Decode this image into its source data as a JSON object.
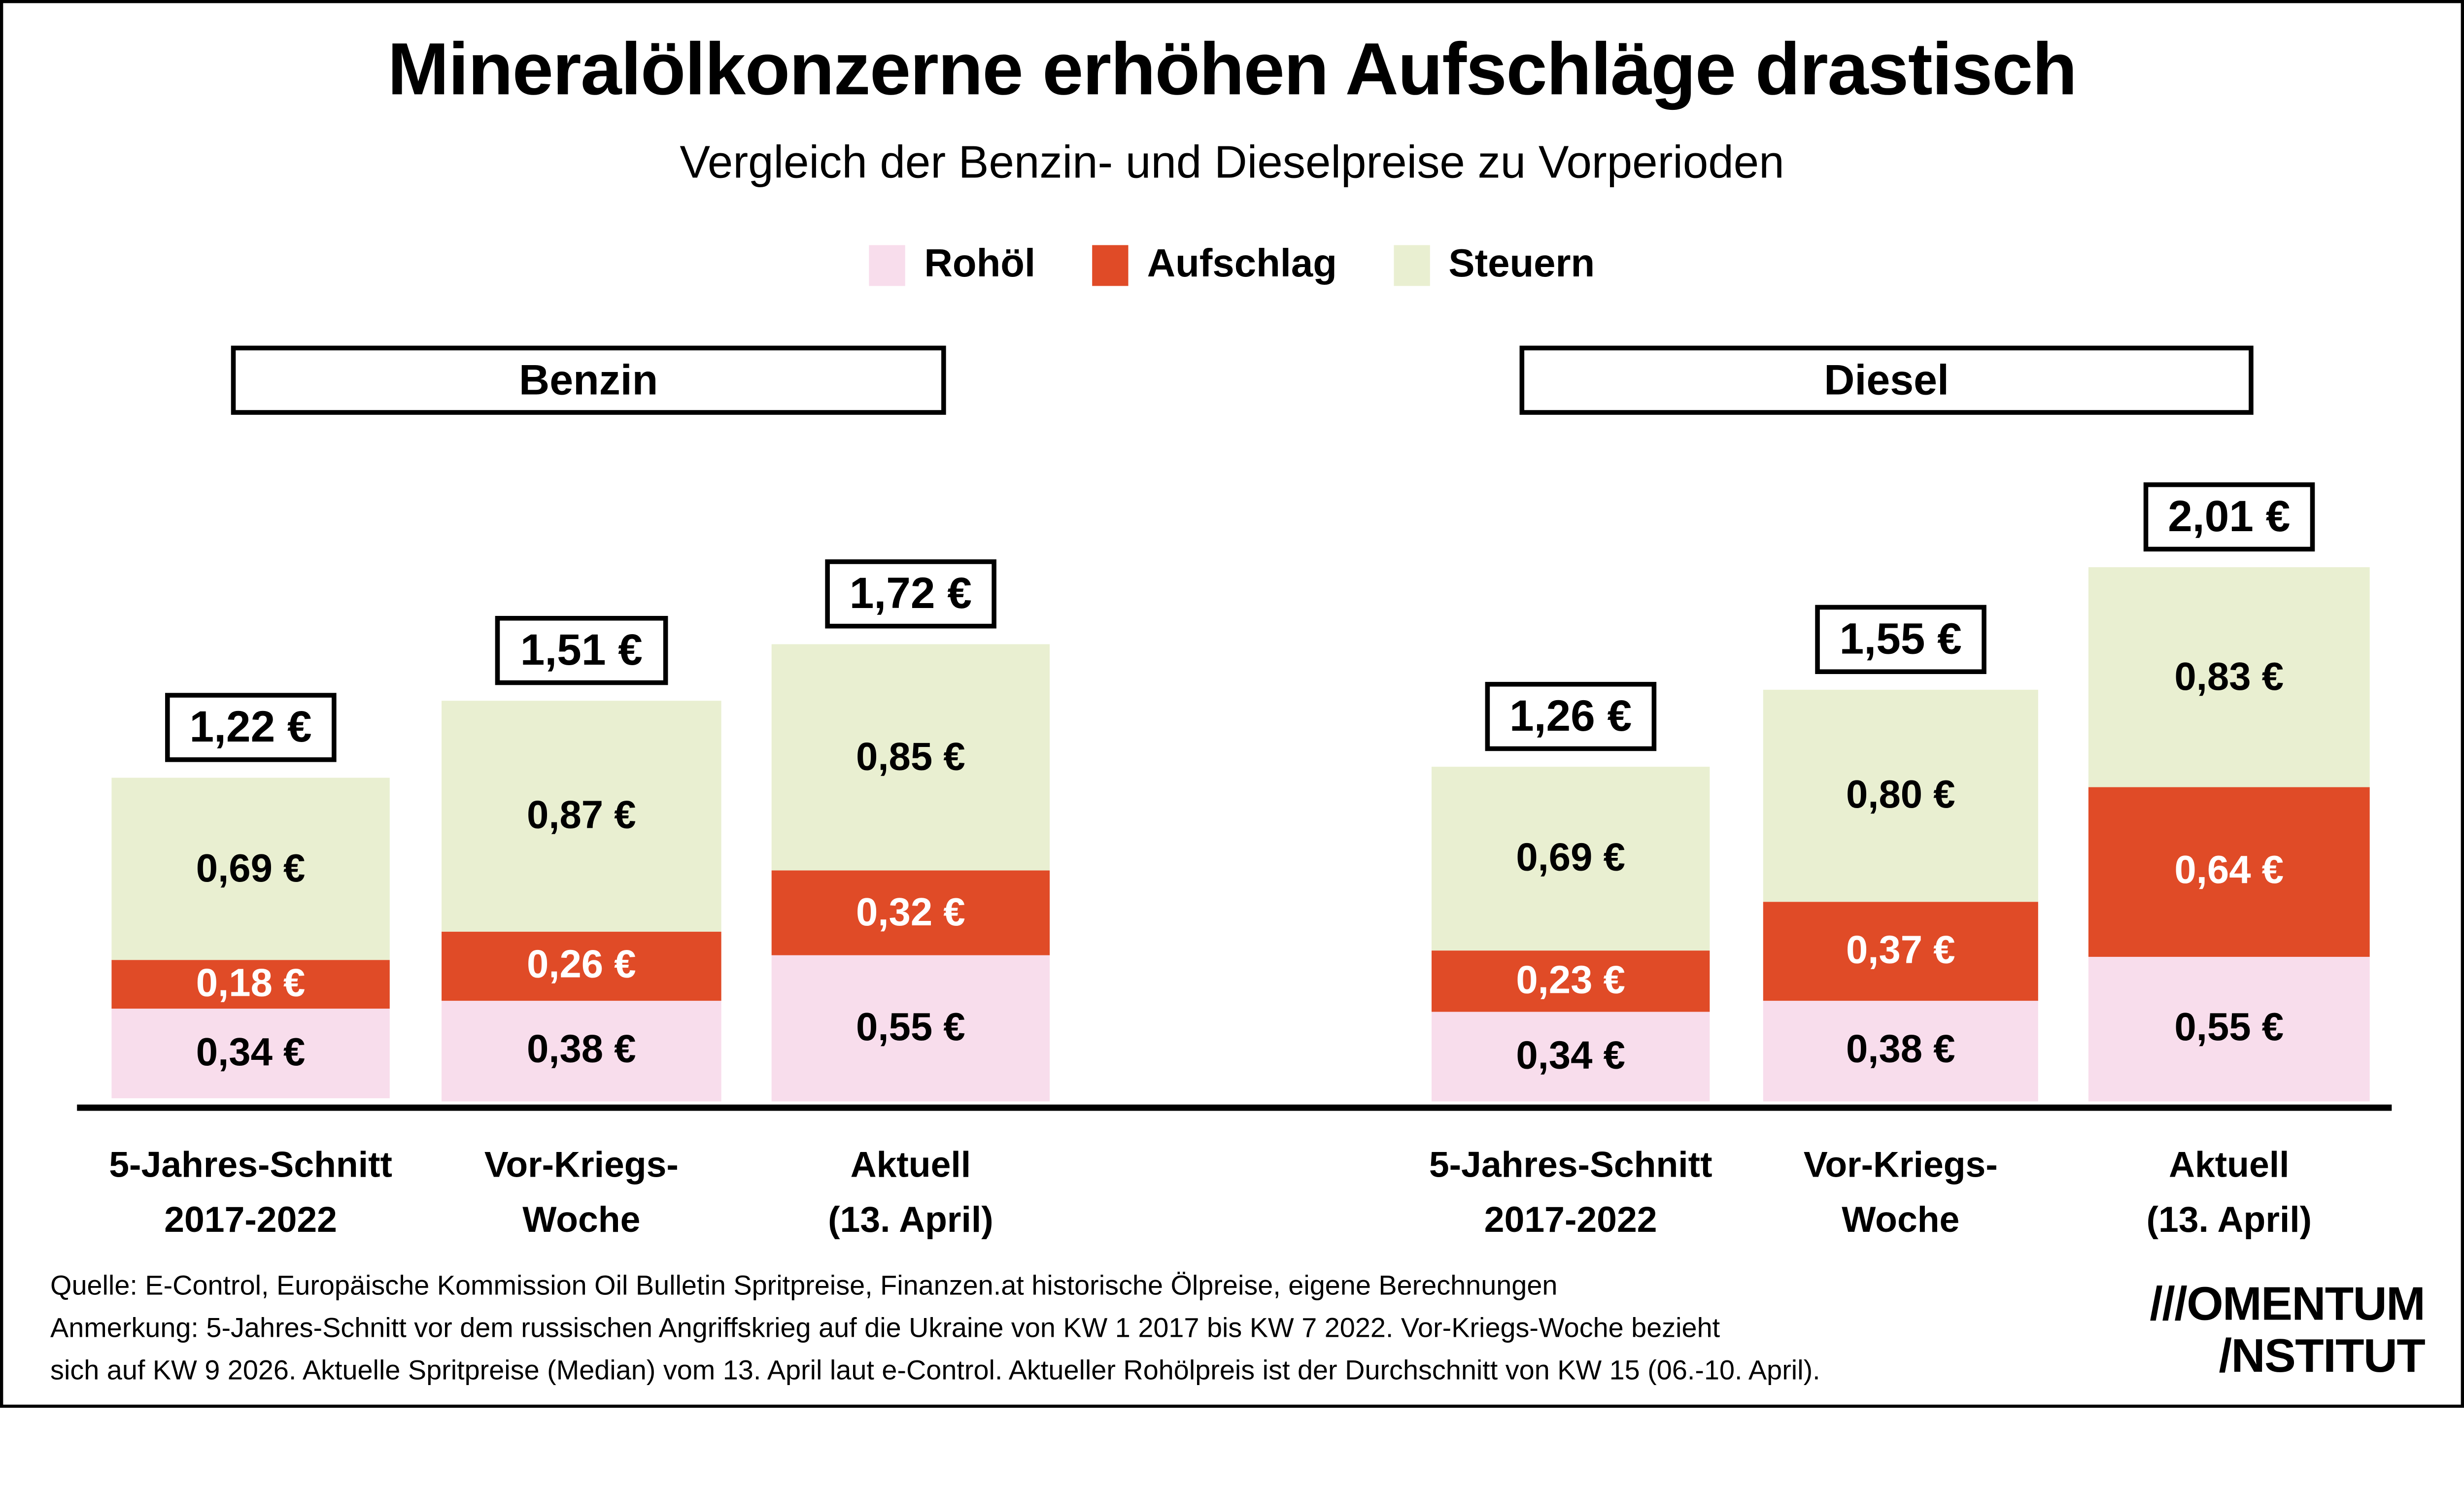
{
  "title": "Mineralölkonzerne erhöhen Aufschläge drastisch",
  "subtitle": "Vergleich der Benzin- und Dieselpreise zu Vorperioden",
  "colors": {
    "rohoel": "#f8ddec",
    "aufschlag": "#e04b27",
    "steuern": "#e9efd1",
    "axis": "#000000",
    "background": "#ffffff"
  },
  "legend": {
    "items": [
      {
        "id": "rohoel",
        "label": "Rohöl",
        "color": "#f8ddec"
      },
      {
        "id": "aufschlag",
        "label": "Aufschlag",
        "color": "#e04b27"
      },
      {
        "id": "steuern",
        "label": "Steuern",
        "color": "#e9efd1"
      }
    ]
  },
  "chart_data": {
    "type": "bar",
    "stacked": true,
    "unit": "€",
    "value_format": "german-decimal-comma, two decimals, suffix ' €'",
    "ylim": [
      0,
      2.2
    ],
    "gridlines": false,
    "legend_position": "top",
    "series_order_bottom_to_top": [
      "Rohöl",
      "Aufschlag",
      "Steuern"
    ],
    "series_colors": {
      "Rohöl": "#f8ddec",
      "Aufschlag": "#e04b27",
      "Steuern": "#e9efd1"
    },
    "series_label_colors": {
      "Rohöl": "#000000",
      "Aufschlag": "#ffffff",
      "Steuern": "#000000"
    },
    "groups": [
      {
        "name": "Benzin",
        "categories": [
          [
            "5-Jahres-Schnitt",
            "2017-2022"
          ],
          [
            "Vor-Kriegs-",
            "Woche"
          ],
          [
            "Aktuell",
            "(13. April)"
          ]
        ],
        "series": [
          {
            "name": "Rohöl",
            "values": [
              0.34,
              0.38,
              0.55
            ]
          },
          {
            "name": "Aufschlag",
            "values": [
              0.18,
              0.26,
              0.32
            ]
          },
          {
            "name": "Steuern",
            "values": [
              0.69,
              0.87,
              0.85
            ]
          }
        ],
        "totals": [
          1.22,
          1.51,
          1.72
        ]
      },
      {
        "name": "Diesel",
        "categories": [
          [
            "5-Jahres-Schnitt",
            "2017-2022"
          ],
          [
            "Vor-Kriegs-",
            "Woche"
          ],
          [
            "Aktuell",
            "(13. April)"
          ]
        ],
        "series": [
          {
            "name": "Rohöl",
            "values": [
              0.34,
              0.38,
              0.55
            ]
          },
          {
            "name": "Aufschlag",
            "values": [
              0.23,
              0.37,
              0.64
            ]
          },
          {
            "name": "Steuern",
            "values": [
              0.69,
              0.8,
              0.83
            ]
          }
        ],
        "totals": [
          1.26,
          1.55,
          2.01
        ]
      }
    ]
  },
  "footer": {
    "lines": [
      "Quelle: E-Control, Europäische Kommission Oil Bulletin Spritpreise, Finanzen.at historische Ölpreise, eigene Berechnungen",
      "Anmerkung: 5-Jahres-Schnitt vor dem russischen Angriffskrieg auf die Ukraine von KW 1 2017 bis KW 7 2022.  Vor-Kriegs-Woche bezieht",
      "sich auf KW 9 2026. Aktuelle Spritpreise (Median) vom 13. April laut e-Control. Aktueller Rohölpreis ist der Durchschnitt von KW 15 (06.-10. April)."
    ]
  },
  "logo": {
    "line1": "///OMENTUM",
    "line2": "/NSTITUT"
  }
}
